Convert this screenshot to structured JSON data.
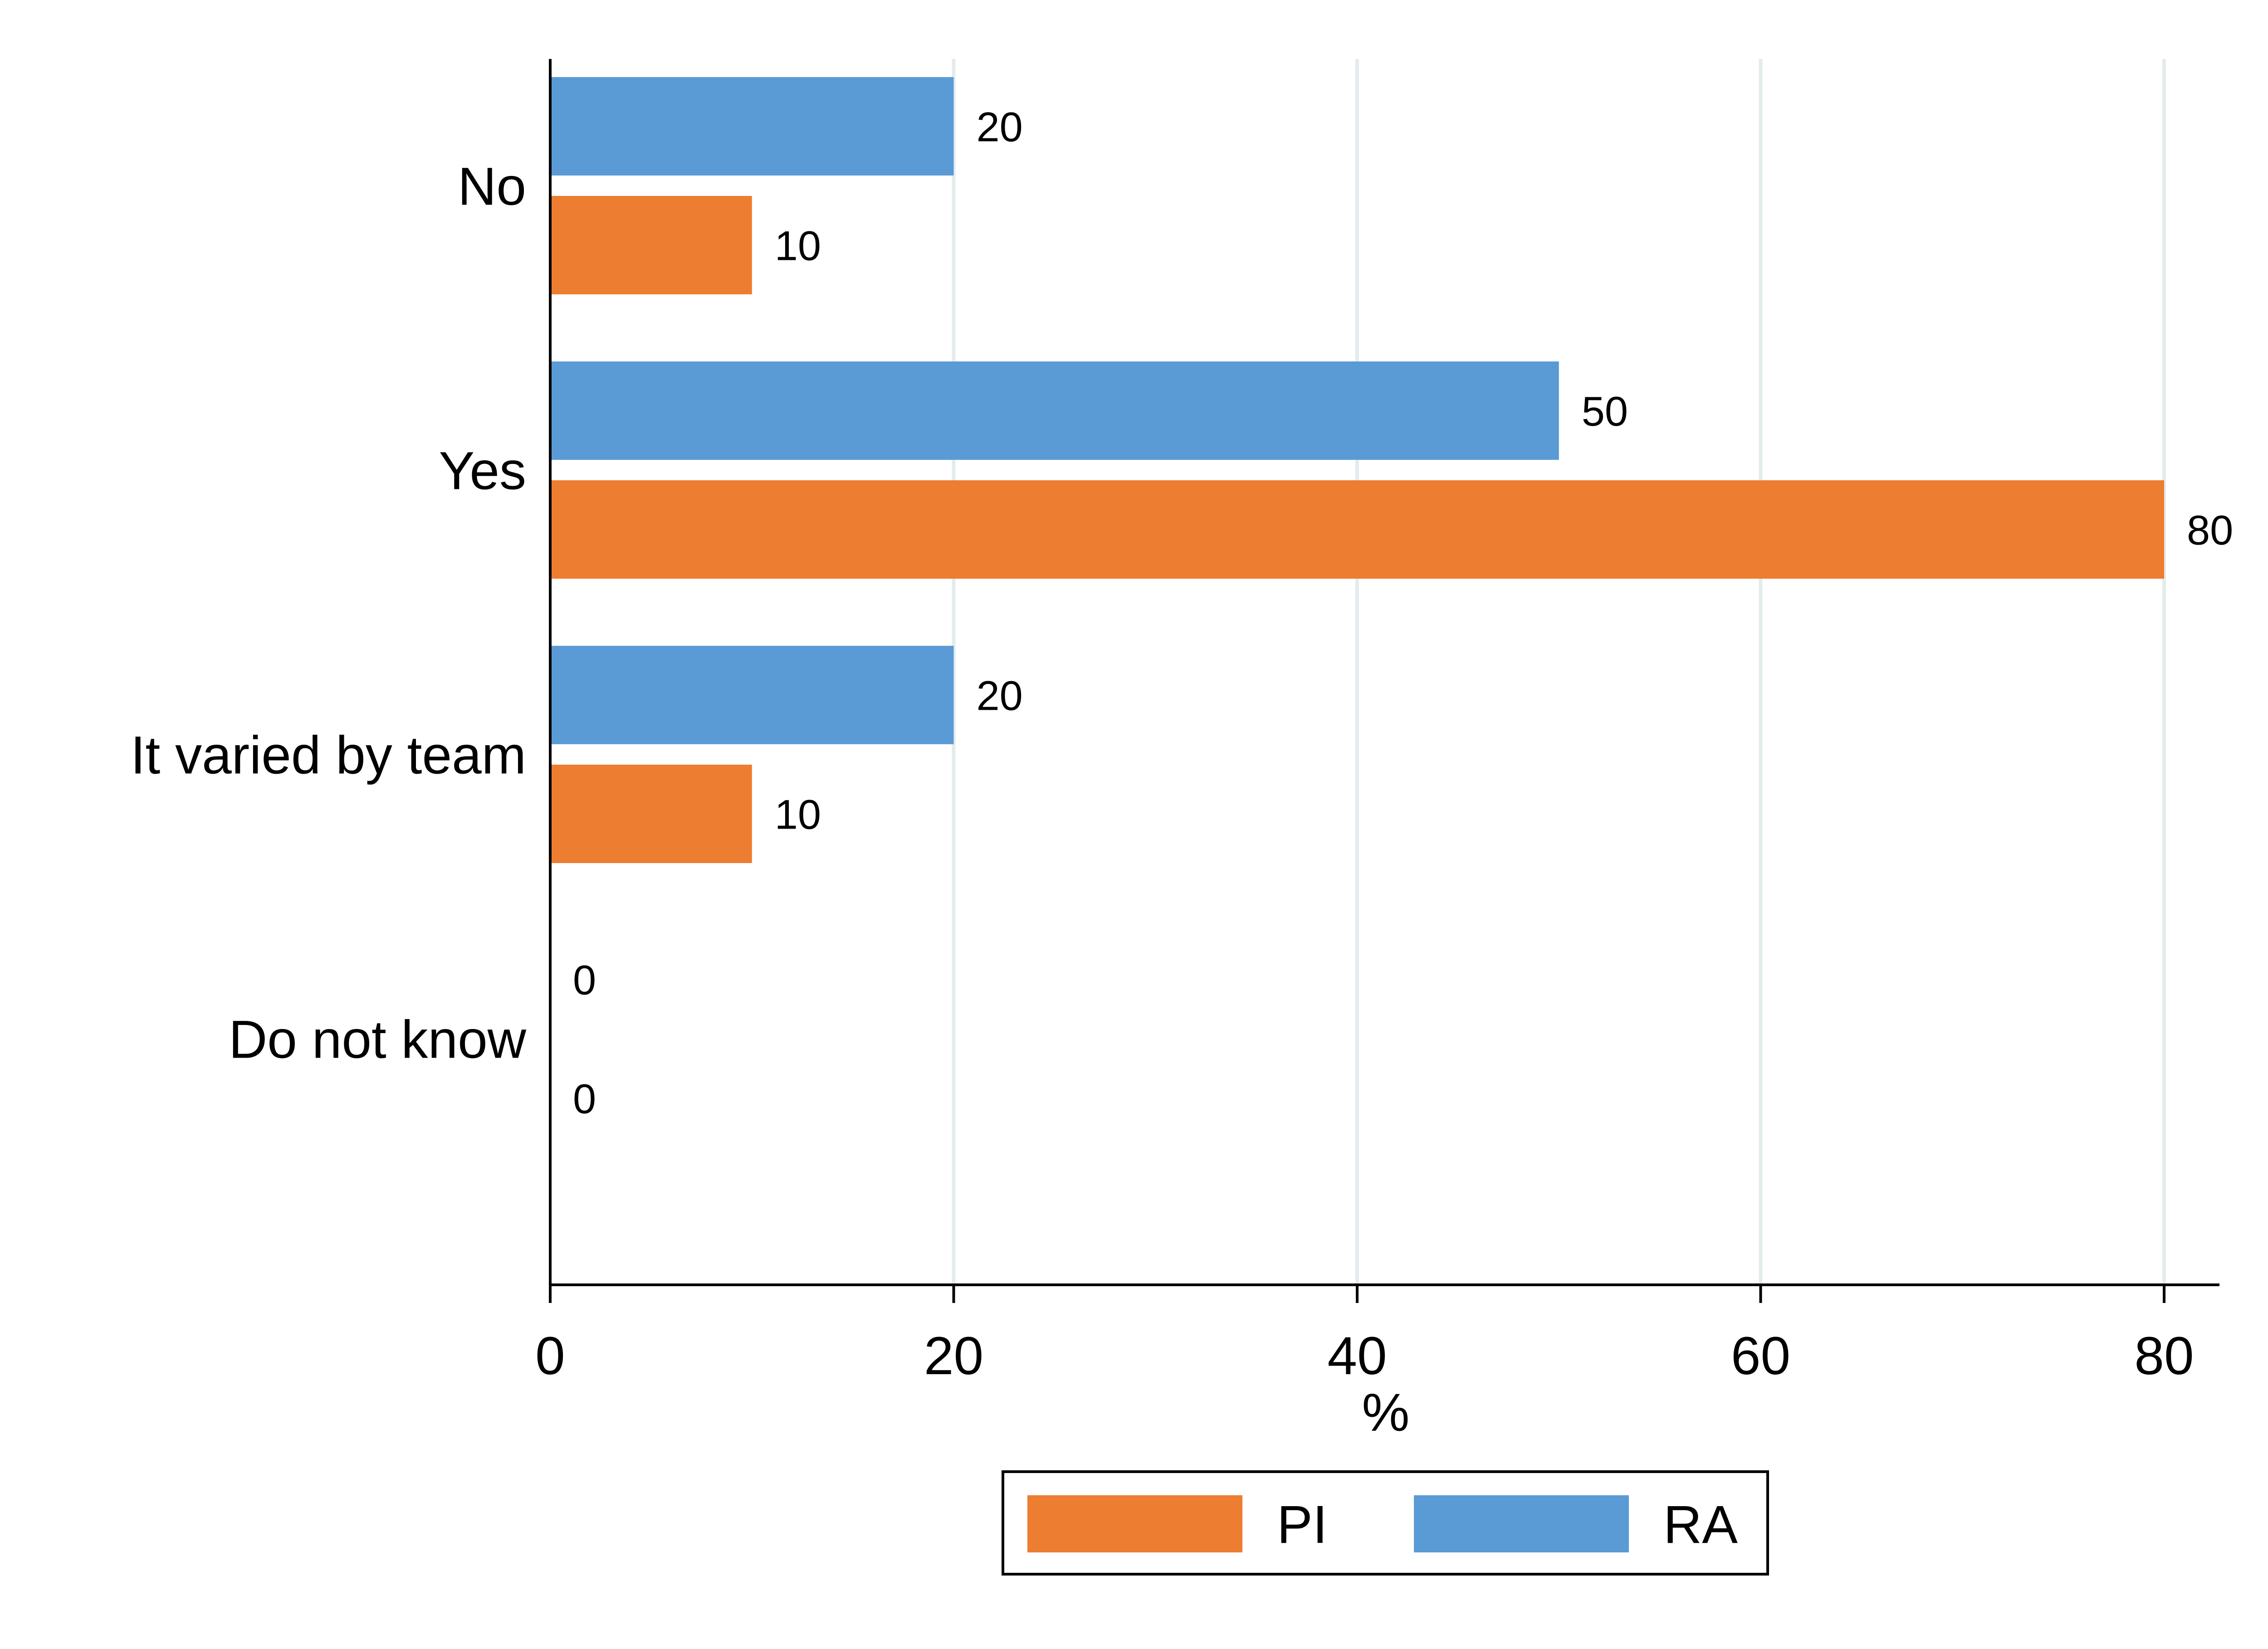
{
  "chart_data": {
    "type": "bar",
    "orientation": "horizontal",
    "categories": [
      "No",
      "Yes",
      "It varied by team",
      "Do not know"
    ],
    "series": [
      {
        "name": "RA",
        "color": "#5b9bd5",
        "values": [
          20,
          50,
          20,
          0
        ]
      },
      {
        "name": "PI",
        "color": "#ed7d31",
        "values": [
          10,
          80,
          10,
          0
        ]
      }
    ],
    "legend_order": [
      "PI",
      "RA"
    ],
    "title": "",
    "xlabel": "%",
    "ylabel": "",
    "xlim": [
      0,
      82.8
    ],
    "xticks": [
      0,
      20,
      40,
      60,
      80
    ],
    "xtick_labels": [
      "0",
      "20",
      "40",
      "60",
      "80"
    ],
    "grid": "vertical",
    "legend_position": "bottom-center"
  }
}
